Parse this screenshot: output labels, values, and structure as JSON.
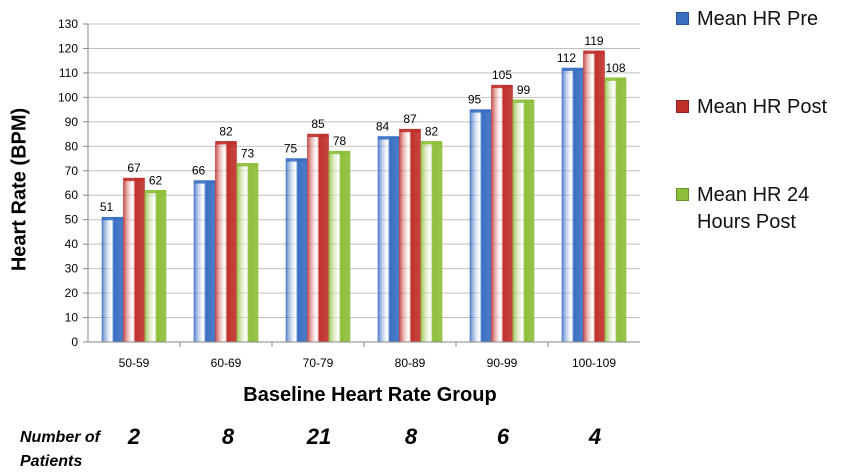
{
  "chart_data": {
    "type": "bar",
    "categories": [
      "50-59",
      "60-69",
      "70-79",
      "80-89",
      "90-99",
      "100-109"
    ],
    "series": [
      {
        "name": "Mean HR Pre",
        "values": [
          51,
          66,
          75,
          84,
          95,
          112
        ],
        "color": "#3b6fc4"
      },
      {
        "name": "Mean HR Post",
        "values": [
          67,
          82,
          85,
          87,
          105,
          119
        ],
        "color": "#c0312c"
      },
      {
        "name": "Mean HR 24 Hours Post",
        "values": [
          62,
          73,
          78,
          82,
          99,
          108
        ],
        "color": "#8dbf3a"
      }
    ],
    "xlabel": "Baseline Heart Rate Group",
    "ylabel": "Heart Rate (BPM)",
    "ylim": [
      0,
      130
    ],
    "ytick_step": 10,
    "grid": true,
    "legend_position": "right"
  },
  "patients": {
    "label": "Number of Patients",
    "counts": [
      "2",
      "8",
      "21",
      "8",
      "6",
      "4"
    ]
  }
}
